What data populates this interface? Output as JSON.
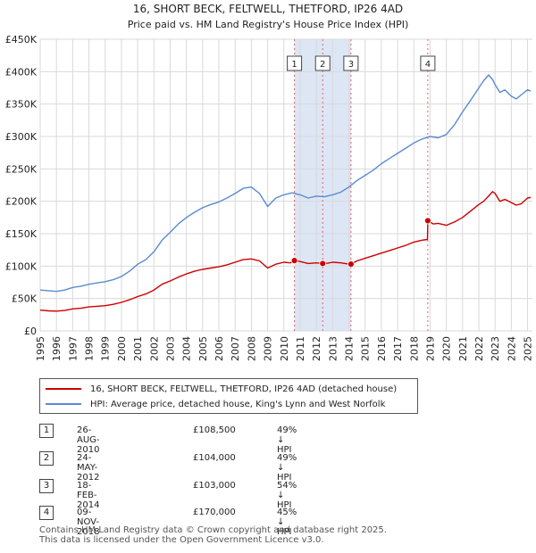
{
  "colors": {
    "property": "#cc0000",
    "hpi": "#5b8bd0",
    "shade": "#dde6f5",
    "grid": "#d9d9d9",
    "vline": "#e06060"
  },
  "chart_data": {
    "type": "line",
    "title": "16, SHORT BECK, FELTWELL, THETFORD, IP26 4AD",
    "subtitle": "Price paid vs. HM Land Registry's House Price Index (HPI)",
    "xlabel": "",
    "ylabel": "",
    "xlim": [
      1995,
      2025.3
    ],
    "ylim": [
      0,
      450000
    ],
    "x_ticks": [
      "1995",
      "1996",
      "1997",
      "1998",
      "1999",
      "2000",
      "2001",
      "2002",
      "2003",
      "2004",
      "2005",
      "2006",
      "2007",
      "2008",
      "2009",
      "2010",
      "2011",
      "2012",
      "2013",
      "2014",
      "2015",
      "2016",
      "2017",
      "2018",
      "2019",
      "2020",
      "2021",
      "2022",
      "2023",
      "2024",
      "2025"
    ],
    "y_ticks": [
      {
        "value": 0,
        "label": "£0"
      },
      {
        "value": 50000,
        "label": "£50K"
      },
      {
        "value": 100000,
        "label": "£100K"
      },
      {
        "value": 150000,
        "label": "£150K"
      },
      {
        "value": 200000,
        "label": "£200K"
      },
      {
        "value": 250000,
        "label": "£250K"
      },
      {
        "value": 300000,
        "label": "£300K"
      },
      {
        "value": 350000,
        "label": "£350K"
      },
      {
        "value": 400000,
        "label": "£400K"
      },
      {
        "value": 450000,
        "label": "£450K"
      }
    ],
    "grid": true,
    "shaded_range": [
      2010.65,
      2014.13
    ],
    "series": [
      {
        "name": "16, SHORT BECK, FELTWELL, THETFORD, IP26 4AD (detached house)",
        "key": "property",
        "x": [
          1995.0,
          1995.5,
          1996.0,
          1996.5,
          1997.0,
          1997.5,
          1998.0,
          1998.5,
          1999.0,
          1999.5,
          2000.0,
          2000.5,
          2001.0,
          2001.5,
          2002.0,
          2002.5,
          2003.0,
          2003.5,
          2004.0,
          2004.5,
          2005.0,
          2005.5,
          2006.0,
          2006.5,
          2007.0,
          2007.5,
          2008.0,
          2008.5,
          2009.0,
          2009.5,
          2010.0,
          2010.4,
          2010.65,
          2011.0,
          2011.5,
          2012.0,
          2012.39,
          2012.7,
          2013.0,
          2013.5,
          2013.9,
          2014.13,
          2014.5,
          2015.0,
          2015.5,
          2016.0,
          2016.5,
          2017.0,
          2017.5,
          2018.0,
          2018.5,
          2018.84,
          2018.86,
          2019.2,
          2019.5,
          2020.0,
          2020.5,
          2021.0,
          2021.5,
          2022.0,
          2022.3,
          2022.6,
          2022.85,
          2023.0,
          2023.3,
          2023.6,
          2024.0,
          2024.3,
          2024.6,
          2025.0,
          2025.2
        ],
        "y": [
          32000,
          31000,
          30500,
          31500,
          34000,
          35000,
          37000,
          38000,
          39000,
          41000,
          44000,
          48000,
          53000,
          57000,
          63000,
          72000,
          77000,
          83000,
          88000,
          92000,
          95000,
          97000,
          99000,
          102000,
          106000,
          110000,
          111000,
          108000,
          97000,
          103000,
          106000,
          105000,
          108500,
          107000,
          104000,
          105000,
          104000,
          104500,
          106000,
          105000,
          103500,
          103000,
          108000,
          112000,
          116000,
          120000,
          124000,
          128000,
          132000,
          137000,
          140000,
          141000,
          170000,
          165000,
          166000,
          163000,
          168000,
          175000,
          185000,
          195000,
          200000,
          208000,
          215000,
          212000,
          200000,
          203000,
          198000,
          194000,
          196000,
          205000,
          206000
        ]
      },
      {
        "name": "HPI: Average price, detached house, King's Lynn and West Norfolk",
        "key": "hpi",
        "x": [
          1995.0,
          1995.5,
          1996.0,
          1996.5,
          1997.0,
          1997.5,
          1998.0,
          1998.5,
          1999.0,
          1999.5,
          2000.0,
          2000.5,
          2001.0,
          2001.5,
          2002.0,
          2002.5,
          2003.0,
          2003.5,
          2004.0,
          2004.5,
          2005.0,
          2005.5,
          2006.0,
          2006.5,
          2007.0,
          2007.5,
          2008.0,
          2008.5,
          2009.0,
          2009.5,
          2010.0,
          2010.5,
          2011.0,
          2011.5,
          2012.0,
          2012.5,
          2013.0,
          2013.5,
          2014.0,
          2014.5,
          2015.0,
          2015.5,
          2016.0,
          2016.5,
          2017.0,
          2017.5,
          2018.0,
          2018.5,
          2019.0,
          2019.5,
          2020.0,
          2020.5,
          2021.0,
          2021.5,
          2022.0,
          2022.3,
          2022.6,
          2022.85,
          2023.0,
          2023.3,
          2023.6,
          2024.0,
          2024.3,
          2024.6,
          2025.0,
          2025.2
        ],
        "y": [
          63000,
          62000,
          61000,
          63000,
          67000,
          69000,
          72000,
          74000,
          76000,
          79000,
          84000,
          92000,
          103000,
          110000,
          122000,
          140000,
          152000,
          165000,
          175000,
          183000,
          190000,
          195000,
          199000,
          205000,
          212000,
          220000,
          222000,
          212000,
          192000,
          205000,
          210000,
          213000,
          210000,
          205000,
          208000,
          207000,
          210000,
          214000,
          222000,
          232000,
          240000,
          248000,
          258000,
          266000,
          274000,
          282000,
          290000,
          296000,
          300000,
          298000,
          303000,
          318000,
          338000,
          356000,
          375000,
          386000,
          395000,
          388000,
          380000,
          368000,
          372000,
          362000,
          358000,
          364000,
          372000,
          370000
        ]
      }
    ],
    "transactions": [
      {
        "n": "1",
        "x": 2010.65,
        "y": 108500
      },
      {
        "n": "2",
        "x": 2012.39,
        "y": 104000
      },
      {
        "n": "3",
        "x": 2014.13,
        "y": 103000
      },
      {
        "n": "4",
        "x": 2018.86,
        "y": 170000
      }
    ]
  },
  "legend": {
    "property_label": "16, SHORT BECK, FELTWELL, THETFORD, IP26 4AD (detached house)",
    "hpi_label": "HPI: Average price, detached house, King's Lynn and West Norfolk"
  },
  "table": [
    {
      "n": "1",
      "date": "26-AUG-2010",
      "price": "£108,500",
      "hpi": "49% ↓ HPI"
    },
    {
      "n": "2",
      "date": "24-MAY-2012",
      "price": "£104,000",
      "hpi": "49% ↓ HPI"
    },
    {
      "n": "3",
      "date": "18-FEB-2014",
      "price": "£103,000",
      "hpi": "54% ↓ HPI"
    },
    {
      "n": "4",
      "date": "09-NOV-2018",
      "price": "£170,000",
      "hpi": "45% ↓ HPI"
    }
  ],
  "footer": {
    "line1": "Contains HM Land Registry data © Crown copyright and database right 2025.",
    "line2": "This data is licensed under the Open Government Licence v3.0."
  }
}
